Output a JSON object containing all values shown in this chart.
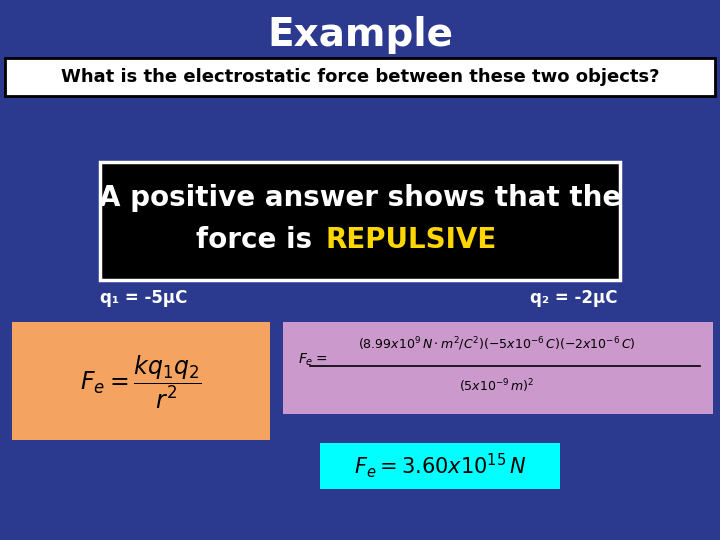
{
  "title": "Example",
  "title_fontsize": 28,
  "title_color": "#FFFFFF",
  "bg_color": "#2B3A8F",
  "question_text": "What is the electrostatic force between these two objects?",
  "question_bg": "#FFFFFF",
  "question_border": "#000000",
  "popup_bg": "#000000",
  "popup_border": "#FFFFFF",
  "popup_line1": "A positive answer shows that the",
  "popup_line2_prefix": "force is ",
  "popup_word": "REPULSIVE",
  "popup_word_color": "#FFD700",
  "popup_text_color": "#FFFFFF",
  "popup_fontsize": 20,
  "charge1_label": "q₁ = -5μC",
  "charge2_label": "q₂ = -2μC",
  "charge_color": "#FFD700",
  "charge_label_color": "#FFFFFF",
  "formula_bg": "#F4A460",
  "formula2_bg": "#CC99CC",
  "result_bg": "#00FFFF",
  "result_text_color": "#000000"
}
